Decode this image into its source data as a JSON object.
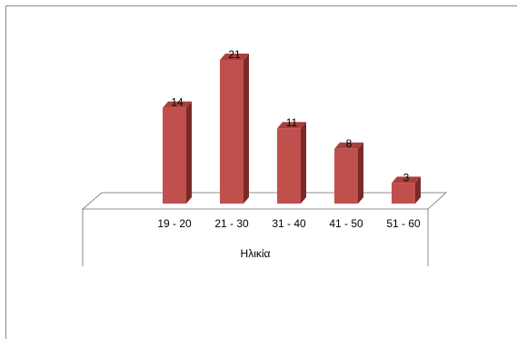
{
  "chart_data": {
    "type": "bar",
    "style": "3d-column",
    "categories": [
      "19 - 20",
      "21 - 30",
      "31 - 40",
      "41 - 50",
      "51 - 60"
    ],
    "values": [
      14,
      21,
      11,
      8,
      3
    ],
    "data_labels": [
      "14",
      "21",
      "11",
      "8",
      "3"
    ],
    "xlabel": "Ηλικία",
    "ylabel": "",
    "title": "",
    "ylim": [
      0,
      21
    ],
    "grid": false,
    "legend": "none",
    "bar_color": "#c0504d",
    "bar_side_color": "#7a2a28",
    "bar_top_color": "#a8403d"
  }
}
